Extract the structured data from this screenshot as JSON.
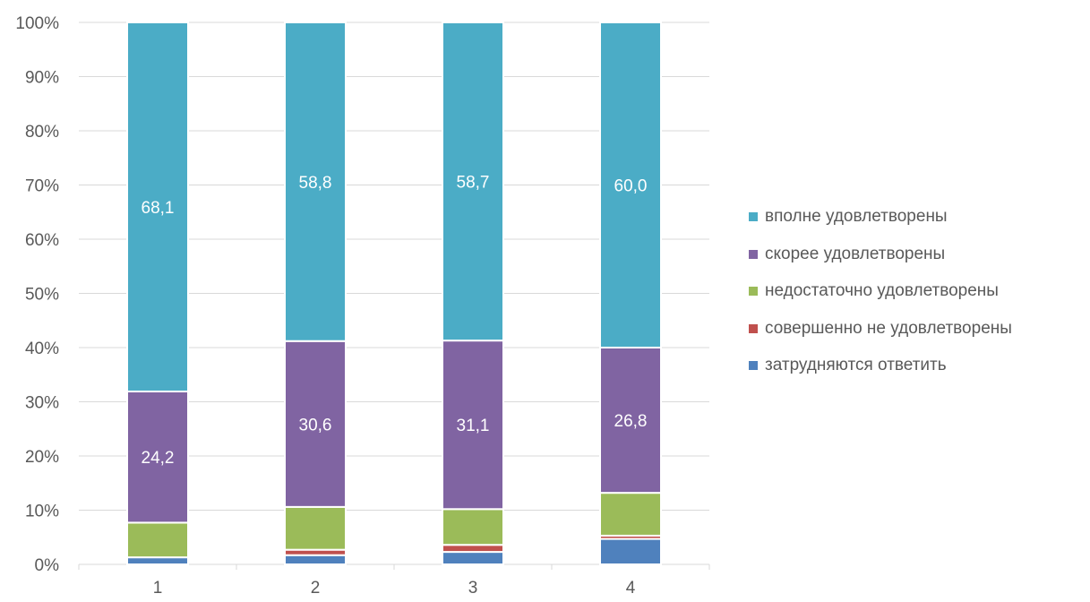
{
  "chart_data": {
    "type": "bar",
    "stacked": true,
    "percent": true,
    "categories": [
      "1",
      "2",
      "3",
      "4"
    ],
    "series": [
      {
        "name": "затрудняются ответить",
        "color": "#4F81BD",
        "values": [
          1.3,
          1.7,
          2.3,
          4.7
        ]
      },
      {
        "name": "совершенно не удовлетворены",
        "color": "#C0504D",
        "values": [
          0.0,
          1.0,
          1.3,
          0.6
        ]
      },
      {
        "name": "недостаточно удовлетворены",
        "color": "#9BBB59",
        "values": [
          6.4,
          7.9,
          6.6,
          7.9
        ]
      },
      {
        "name": "скорее удовлетворены",
        "color": "#8064A2",
        "values": [
          24.2,
          30.6,
          31.1,
          26.8
        ],
        "labels": [
          "24,2",
          "30,6",
          "31,1",
          "26,8"
        ]
      },
      {
        "name": "вполне удовлетворены",
        "color": "#4BACC6",
        "values": [
          68.1,
          58.8,
          58.7,
          60.0
        ],
        "labels": [
          "68,1",
          "58,8",
          "58,7",
          "60,0"
        ]
      }
    ],
    "y_ticks": [
      "0%",
      "10%",
      "20%",
      "30%",
      "40%",
      "50%",
      "60%",
      "70%",
      "80%",
      "90%",
      "100%"
    ],
    "ylim": [
      0,
      100
    ],
    "grid": true,
    "legend_position": "right",
    "legend_order": [
      "вполне удовлетворены",
      "скорее удовлетворены",
      "недостаточно удовлетворены",
      "совершенно не удовлетворены",
      "затрудняются ответить"
    ]
  }
}
